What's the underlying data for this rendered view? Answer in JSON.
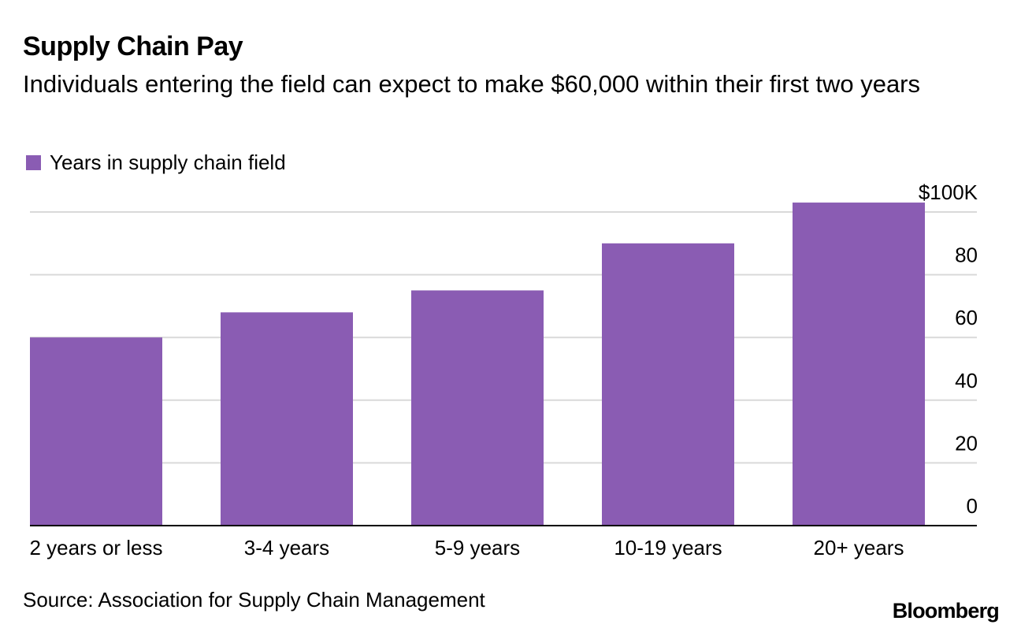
{
  "chart_data": {
    "type": "bar",
    "title": "Supply Chain Pay",
    "subtitle": "Individuals entering the field can expect to make $60,000 within their first two years",
    "legend": [
      "Years in supply chain field"
    ],
    "categories": [
      "2 years or less",
      "3-4 years",
      "5-9 years",
      "10-19 years",
      "20+ years"
    ],
    "series": [
      {
        "name": "Years in supply chain field",
        "values": [
          60,
          68,
          75,
          90,
          103
        ]
      }
    ],
    "ylim": [
      0,
      100
    ],
    "y_ticks": [
      0,
      20,
      40,
      60,
      80,
      100
    ],
    "y_tick_labels": [
      "0",
      "20",
      "40",
      "60",
      "80",
      "$100K"
    ],
    "y_axis_side": "right",
    "grid": true,
    "colors": {
      "bar": "#8a5cb3",
      "grid": "#d9d9d9",
      "axis": "#000000",
      "text": "#000000"
    }
  },
  "footer": {
    "source": "Source: Association for Supply Chain Management",
    "brand": "Bloomberg"
  }
}
